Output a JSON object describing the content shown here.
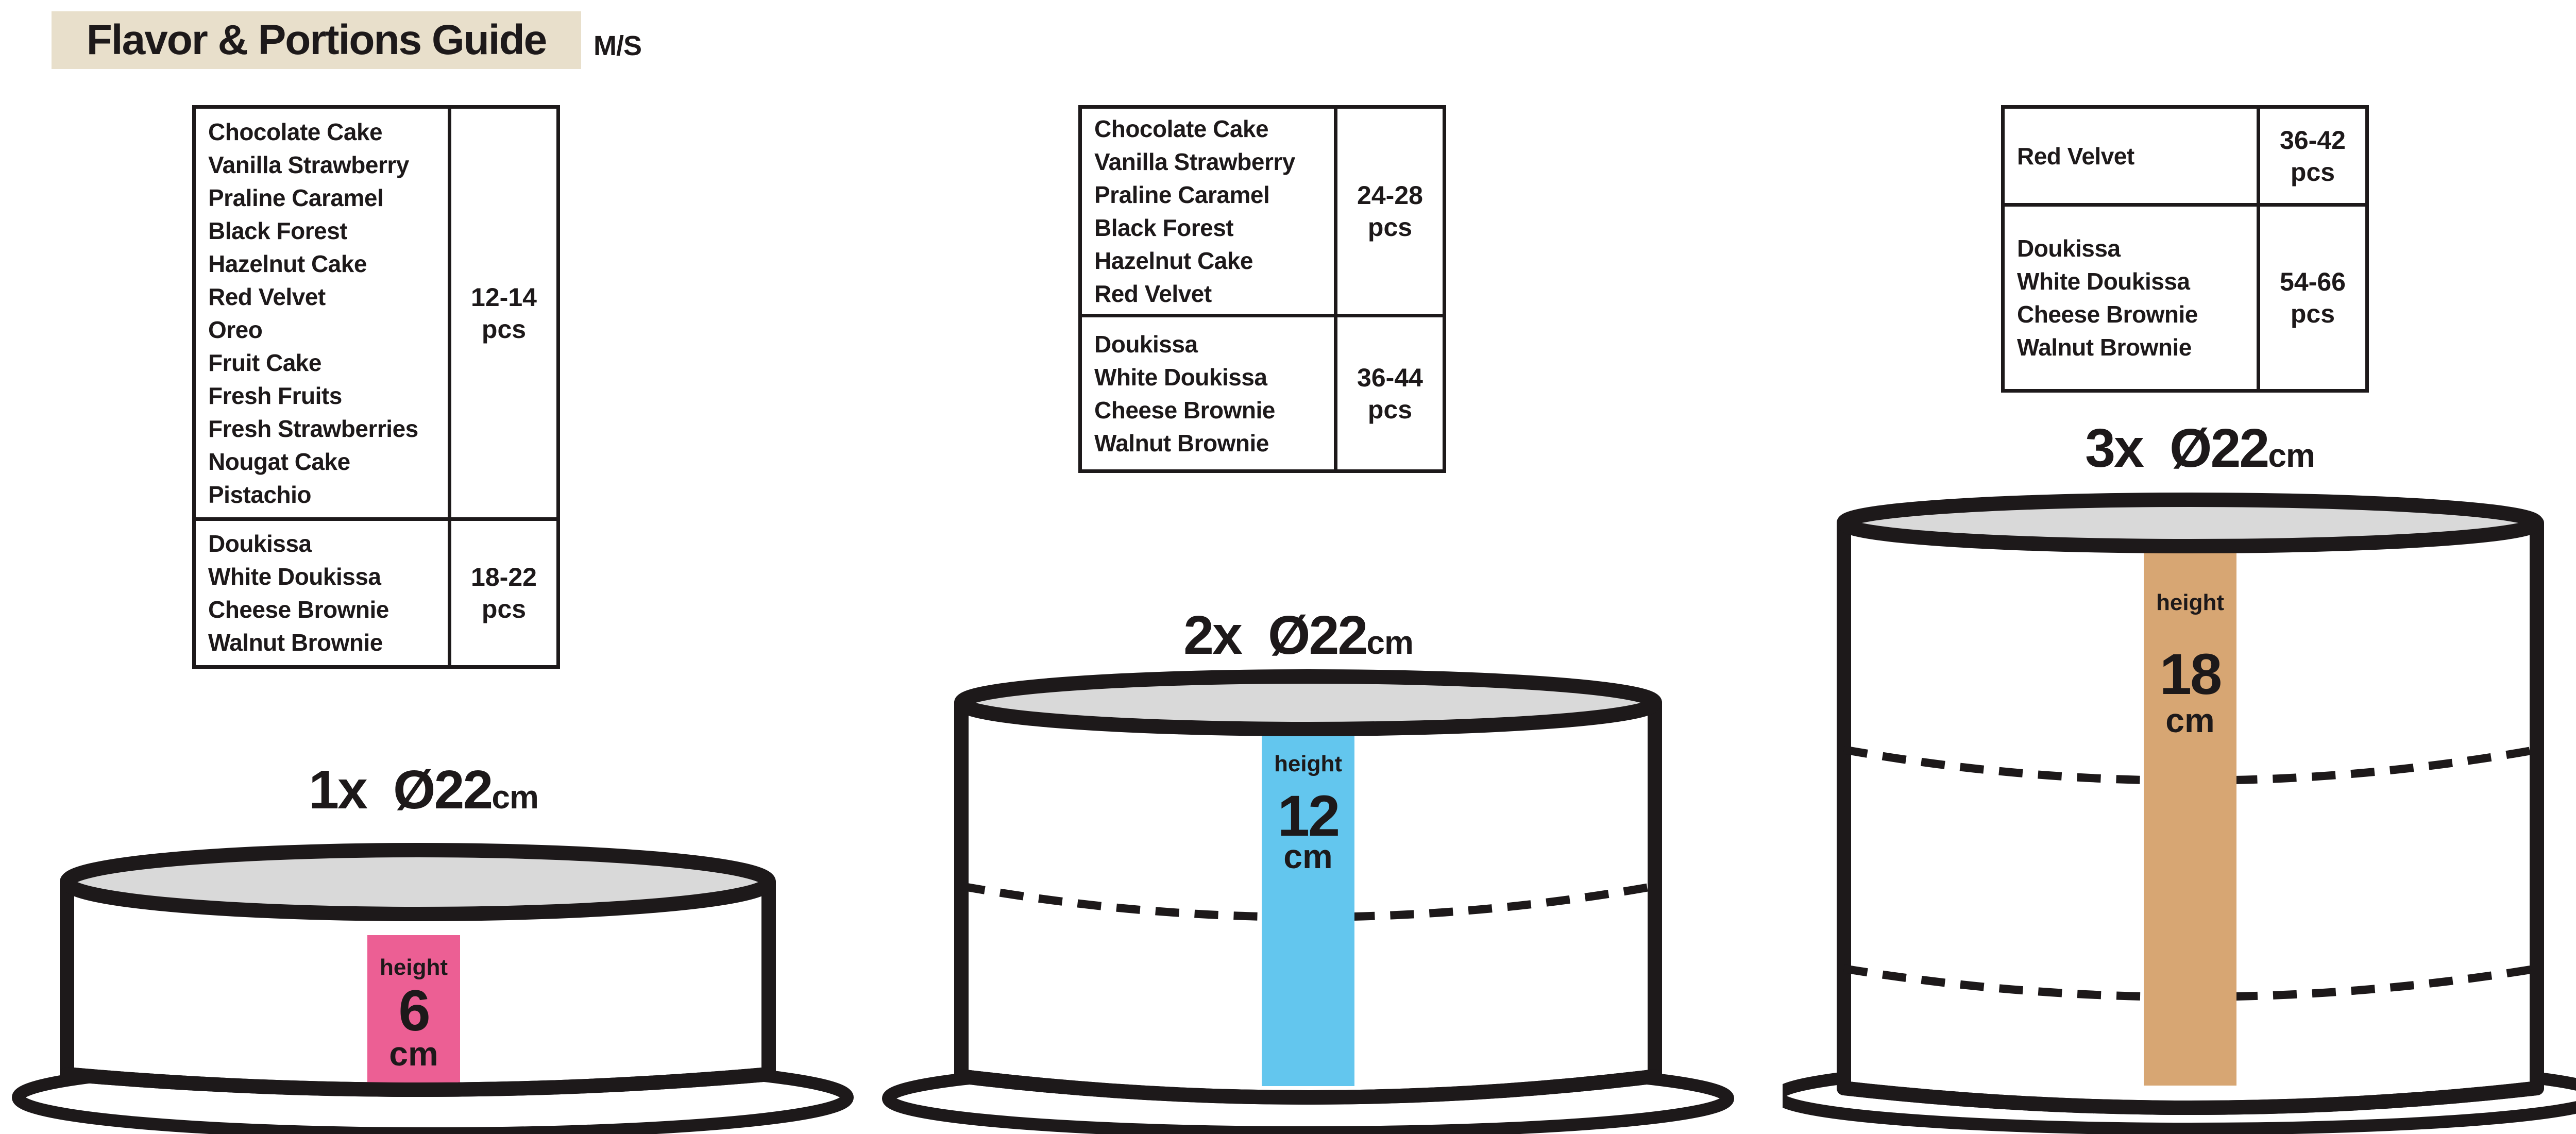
{
  "header": {
    "title": "Flavor & Portions Guide",
    "badge": "M/S"
  },
  "colors": {
    "ink": "#1d191a",
    "title_background": "#e8dfcb",
    "cake_top_gray": "#d9d9d9",
    "bar_pink": "#ec5f94",
    "bar_blue": "#63c6ee",
    "bar_tan": "#d7a673"
  },
  "tables": [
    {
      "rows": [
        {
          "flavors": [
            "Chocolate Cake",
            "Vanilla Strawberry",
            "Praline Caramel",
            "Black Forest",
            "Hazelnut Cake",
            "Red Velvet",
            "Oreo",
            "Fruit Cake",
            "Fresh Fruits",
            "Fresh Strawberries",
            "Nougat Cake",
            "Pistachio"
          ],
          "portions": "12-14",
          "unit": "pcs"
        },
        {
          "flavors": [
            "Doukissa",
            "White Doukissa",
            "Cheese Brownie",
            "Walnut Brownie"
          ],
          "portions": "18-22",
          "unit": "pcs"
        }
      ]
    },
    {
      "rows": [
        {
          "flavors": [
            "Chocolate Cake",
            "Vanilla Strawberry",
            "Praline Caramel",
            "Black Forest",
            "Hazelnut Cake",
            "Red Velvet"
          ],
          "portions": "24-28",
          "unit": "pcs"
        },
        {
          "flavors": [
            "Doukissa",
            "White Doukissa",
            "Cheese Brownie",
            "Walnut Brownie"
          ],
          "portions": "36-44",
          "unit": "pcs"
        }
      ]
    },
    {
      "rows": [
        {
          "flavors": [
            "Red Velvet"
          ],
          "portions": "36-42",
          "unit": "pcs"
        },
        {
          "flavors": [
            "Doukissa",
            "White Doukissa",
            "Cheese Brownie",
            "Walnut Brownie"
          ],
          "portions": "54-66",
          "unit": "pcs"
        }
      ]
    }
  ],
  "cakes": [
    {
      "tiers": "1x",
      "diameter": "Ø22",
      "diameter_unit": "cm",
      "height_label": "height",
      "height_value": "6",
      "height_unit": "cm",
      "bar_color": "#ec5f94"
    },
    {
      "tiers": "2x",
      "diameter": "Ø22",
      "diameter_unit": "cm",
      "height_label": "height",
      "height_value": "12",
      "height_unit": "cm",
      "bar_color": "#63c6ee"
    },
    {
      "tiers": "3x",
      "diameter": "Ø22",
      "diameter_unit": "cm",
      "height_label": "height",
      "height_value": "18",
      "height_unit": "cm",
      "bar_color": "#d7a673"
    }
  ]
}
